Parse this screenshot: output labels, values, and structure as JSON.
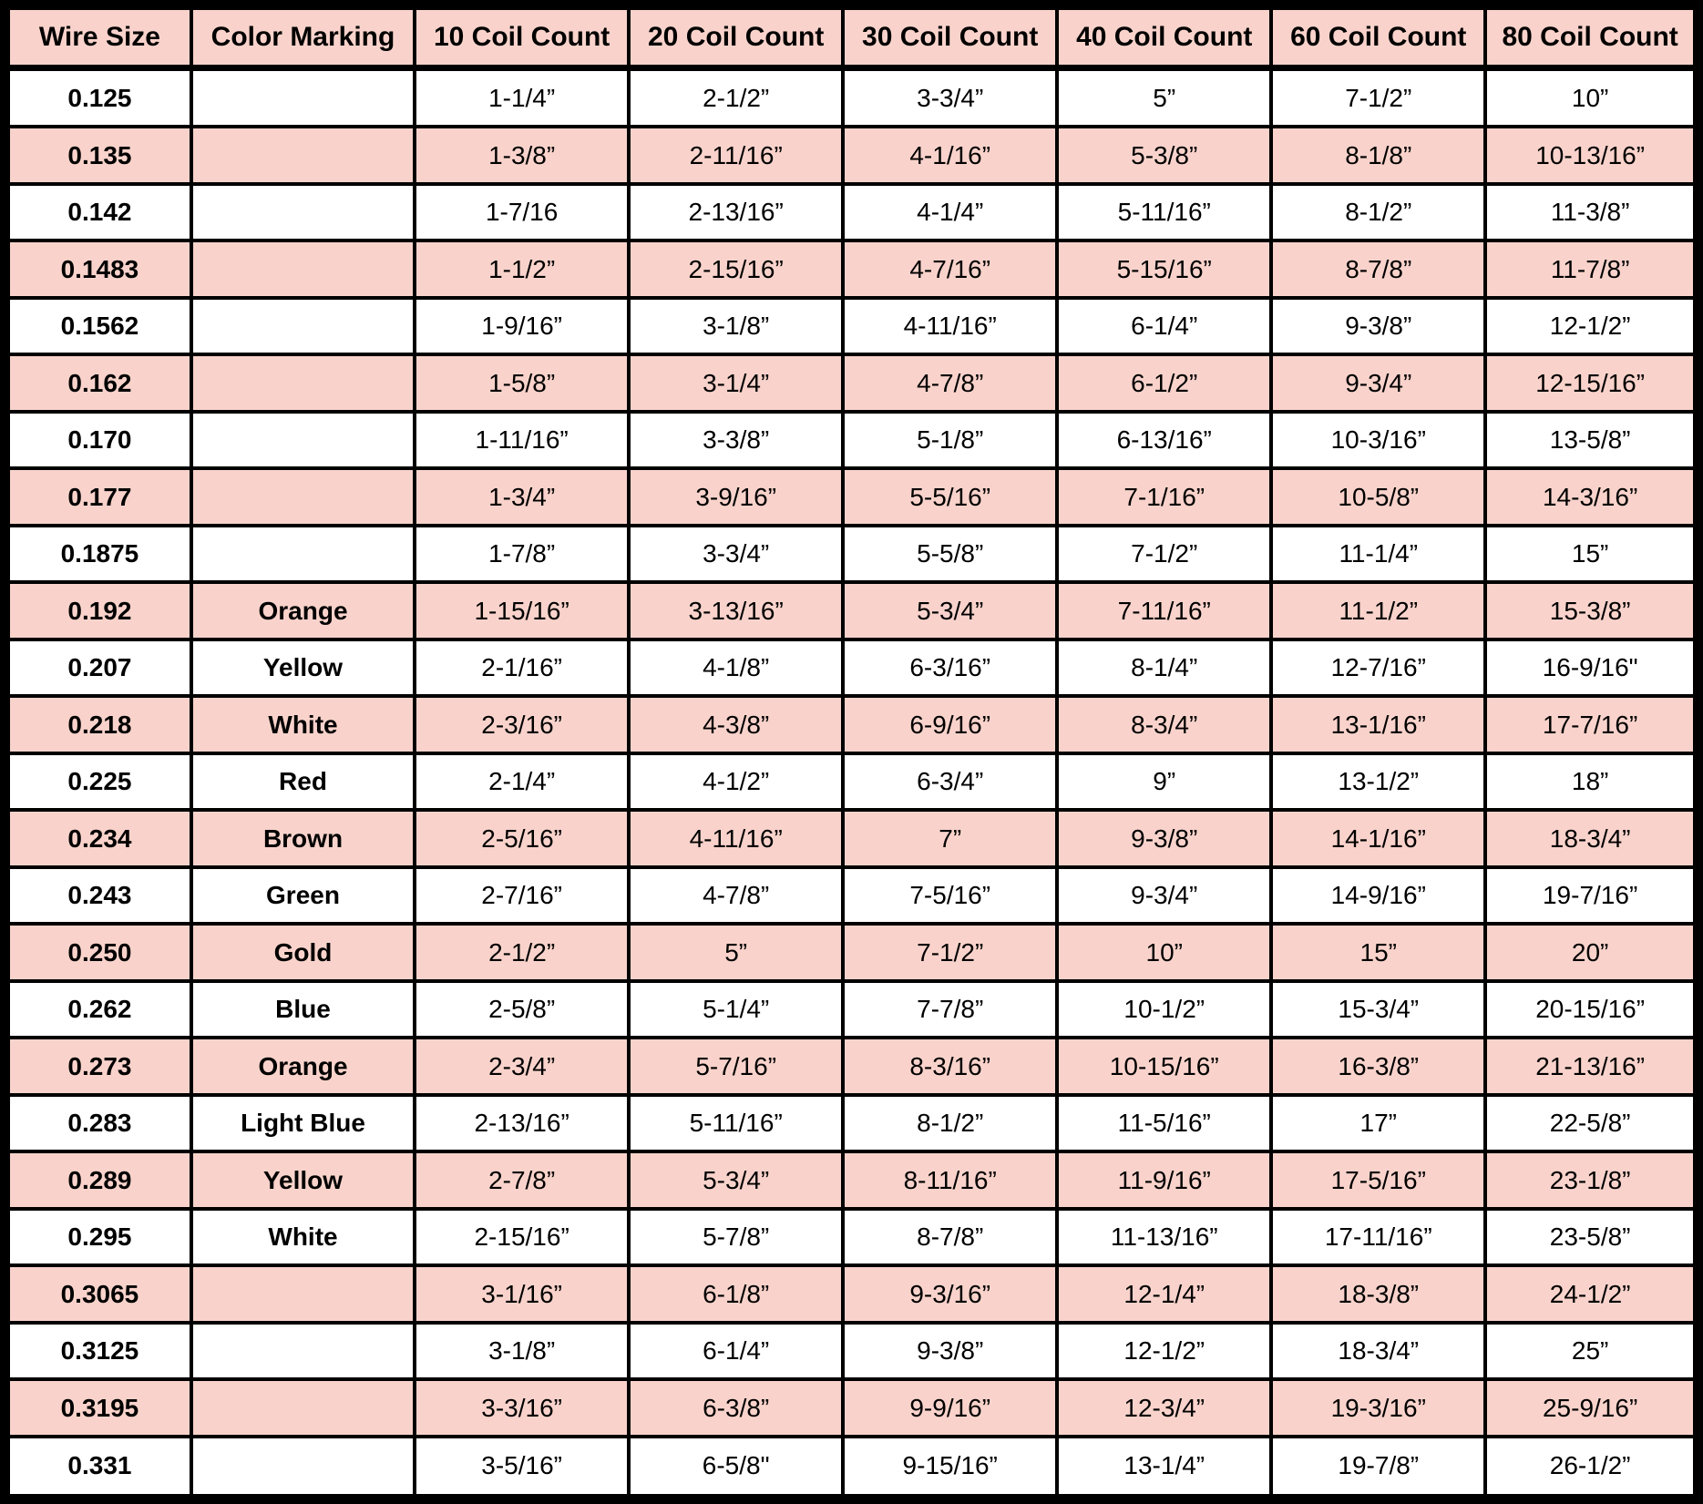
{
  "chart_data": {
    "type": "table",
    "columns": [
      "Wire Size",
      "Color Marking",
      "10 Coil Count",
      "20 Coil Count",
      "30 Coil Count",
      "40 Coil Count",
      "60 Coil Count",
      "80 Coil Count"
    ],
    "rows": [
      [
        "0.125",
        "",
        "1-1/4”",
        "2-1/2”",
        "3-3/4”",
        "5”",
        "7-1/2”",
        "10”"
      ],
      [
        "0.135",
        "",
        "1-3/8”",
        "2-11/16”",
        "4-1/16”",
        "5-3/8”",
        "8-1/8”",
        "10-13/16”"
      ],
      [
        "0.142",
        "",
        "1-7/16",
        "2-13/16”",
        "4-1/4”",
        "5-11/16”",
        "8-1/2”",
        "11-3/8”"
      ],
      [
        "0.1483",
        "",
        "1-1/2”",
        "2-15/16”",
        "4-7/16”",
        "5-15/16”",
        "8-7/8”",
        "11-7/8”"
      ],
      [
        "0.1562",
        "",
        "1-9/16”",
        "3-1/8”",
        "4-11/16”",
        "6-1/4”",
        "9-3/8”",
        "12-1/2”"
      ],
      [
        "0.162",
        "",
        "1-5/8”",
        "3-1/4”",
        "4-7/8”",
        "6-1/2”",
        "9-3/4”",
        "12-15/16”"
      ],
      [
        "0.170",
        "",
        "1-11/16”",
        "3-3/8”",
        "5-1/8”",
        "6-13/16”",
        "10-3/16”",
        "13-5/8”"
      ],
      [
        "0.177",
        "",
        "1-3/4”",
        "3-9/16”",
        "5-5/16”",
        "7-1/16”",
        "10-5/8”",
        "14-3/16”"
      ],
      [
        "0.1875",
        "",
        "1-7/8”",
        "3-3/4”",
        "5-5/8”",
        "7-1/2”",
        "11-1/4”",
        "15”"
      ],
      [
        "0.192",
        "Orange",
        "1-15/16”",
        "3-13/16”",
        "5-3/4”",
        "7-11/16”",
        "11-1/2”",
        "15-3/8”"
      ],
      [
        "0.207",
        "Yellow",
        "2-1/16”",
        "4-1/8”",
        "6-3/16”",
        "8-1/4”",
        "12-7/16”",
        "16-9/16\""
      ],
      [
        "0.218",
        "White",
        "2-3/16”",
        "4-3/8”",
        "6-9/16”",
        "8-3/4”",
        "13-1/16”",
        "17-7/16”"
      ],
      [
        "0.225",
        "Red",
        "2-1/4”",
        "4-1/2”",
        "6-3/4”",
        "9”",
        "13-1/2”",
        "18”"
      ],
      [
        "0.234",
        "Brown",
        "2-5/16”",
        "4-11/16”",
        "7”",
        "9-3/8”",
        "14-1/16”",
        "18-3/4”"
      ],
      [
        "0.243",
        "Green",
        "2-7/16”",
        "4-7/8”",
        "7-5/16”",
        "9-3/4”",
        "14-9/16”",
        "19-7/16”"
      ],
      [
        "0.250",
        "Gold",
        "2-1/2”",
        "5”",
        "7-1/2”",
        "10”",
        "15”",
        "20”"
      ],
      [
        "0.262",
        "Blue",
        "2-5/8”",
        "5-1/4”",
        "7-7/8”",
        "10-1/2”",
        "15-3/4”",
        "20-15/16”"
      ],
      [
        "0.273",
        "Orange",
        "2-3/4”",
        "5-7/16”",
        "8-3/16”",
        "10-15/16”",
        "16-3/8”",
        "21-13/16”"
      ],
      [
        "0.283",
        "Light Blue",
        "2-13/16”",
        "5-11/16”",
        "8-1/2”",
        "11-5/16”",
        "17”",
        "22-5/8”"
      ],
      [
        "0.289",
        "Yellow",
        "2-7/8”",
        "5-3/4”",
        "8-11/16”",
        "11-9/16”",
        "17-5/16”",
        "23-1/8”"
      ],
      [
        "0.295",
        "White",
        "2-15/16”",
        "5-7/8”",
        "8-7/8”",
        "11-13/16”",
        "17-11/16”",
        "23-5/8”"
      ],
      [
        "0.3065",
        "",
        "3-1/16”",
        "6-1/8”",
        "9-3/16”",
        "12-1/4”",
        "18-3/8”",
        "24-1/2”"
      ],
      [
        "0.3125",
        "",
        "3-1/8”",
        "6-1/4”",
        "9-3/8”",
        "12-1/2”",
        "18-3/4”",
        "25”"
      ],
      [
        "0.3195",
        "",
        "3-3/16”",
        "6-3/8”",
        "9-9/16”",
        "12-3/4”",
        "19-3/16”",
        "25-9/16”"
      ],
      [
        "0.331",
        "",
        "3-5/16”",
        "6-5/8\"",
        "9-15/16”",
        "13-1/4”",
        "19-7/8”",
        "26-1/2”"
      ]
    ],
    "layout": {
      "grid": "full black gridlines, thick black outer frame",
      "striped": "alternating white and pink data rows, first row white",
      "header_position": "top"
    }
  },
  "colors": {
    "header_bg": "#f9d3cb",
    "row_alt_bg": "#f9d3cb",
    "row_bg": "#ffffff",
    "border": "#000000",
    "text": "#000000"
  }
}
